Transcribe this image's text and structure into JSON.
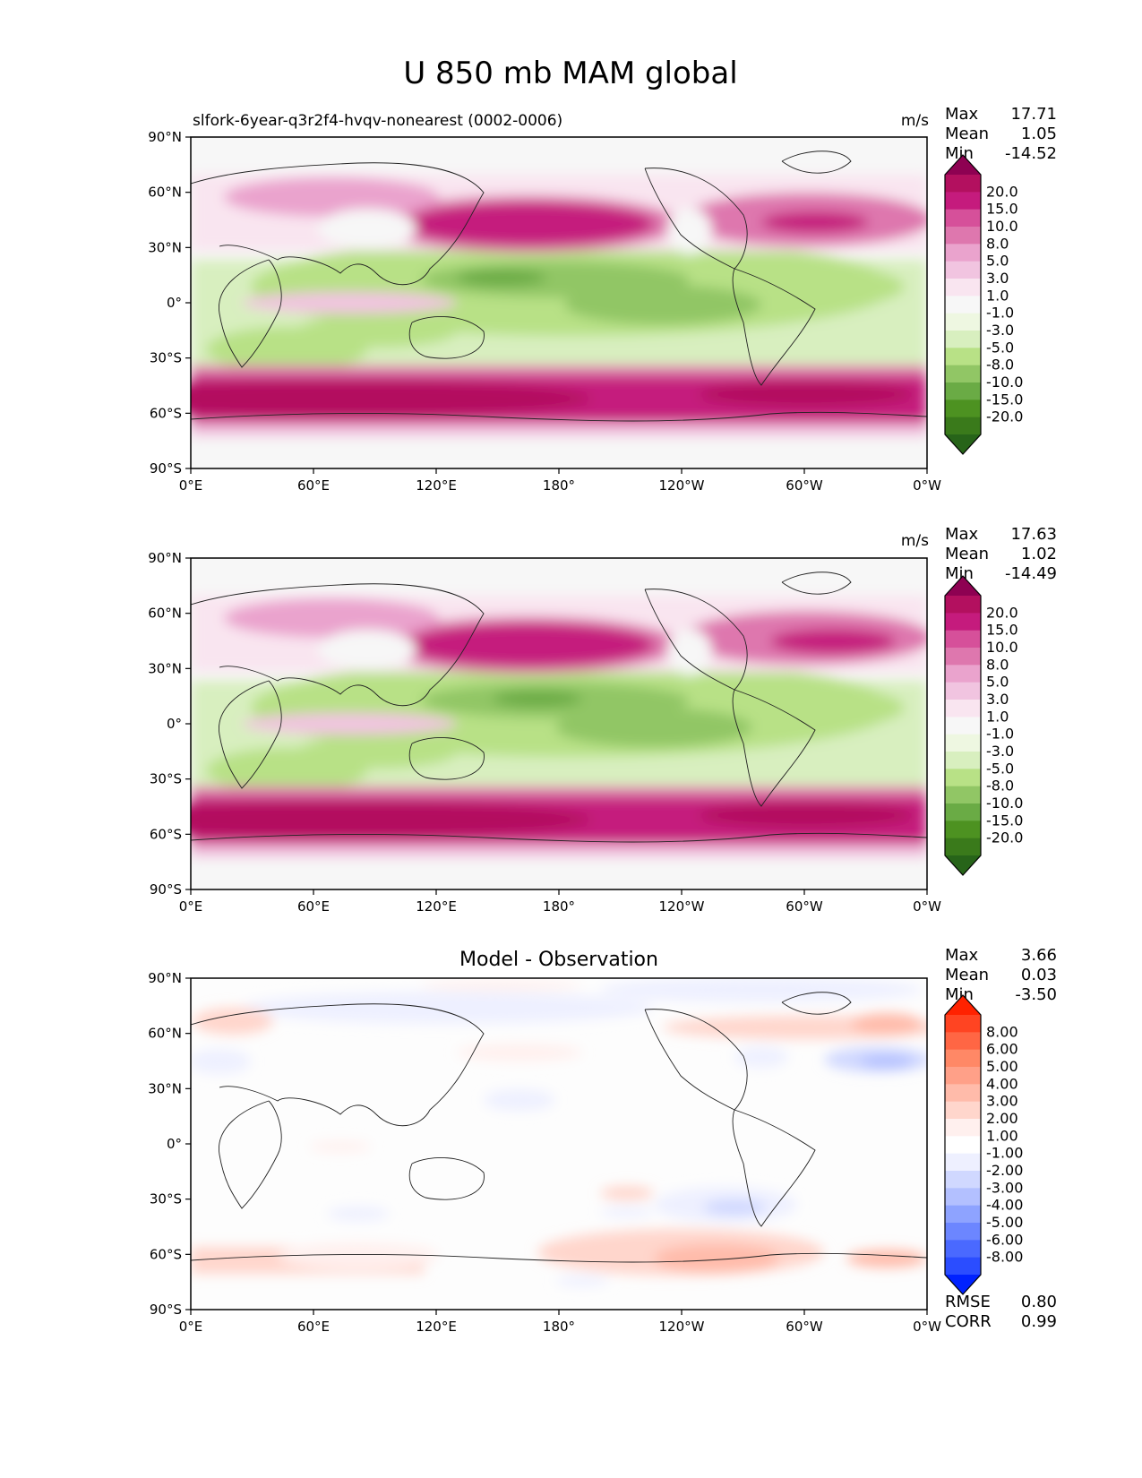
{
  "figure_title": "U 850 mb MAM global",
  "x_ticks": [
    "0°E",
    "60°E",
    "120°E",
    "180°",
    "120°W",
    "60°W",
    "0°W"
  ],
  "y_ticks": [
    "90°N",
    "60°N",
    "30°N",
    "0°",
    "30°S",
    "60°S",
    "90°S"
  ],
  "chart_data": [
    {
      "type": "heatmap",
      "title": "slfork-6year-q3r2f4-hvqv-nonearest (0002-0006)",
      "units": "m/s",
      "stats": [
        {
          "label": "Max",
          "value": "17.71"
        },
        {
          "label": "Mean",
          "value": "1.05"
        },
        {
          "label": "Min",
          "value": "-14.52"
        }
      ],
      "colorbar_labels": [
        "20.0",
        "15.0",
        "10.0",
        "8.0",
        "5.0",
        "3.0",
        "1.0",
        "-1.0",
        "-3.0",
        "-5.0",
        "-8.0",
        "-10.0",
        "-15.0",
        "-20.0"
      ],
      "colorbar_colors": [
        "#8e0152",
        "#b3105f",
        "#c51b7d",
        "#d6509a",
        "#de77ae",
        "#eaa3cd",
        "#f1c4e0",
        "#f9e5f0",
        "#f7f7f7",
        "#eef7e1",
        "#d8efbf",
        "#b8e186",
        "#91c665",
        "#6aab45",
        "#4d9221",
        "#3a7a1b",
        "#276419"
      ],
      "xlim": [
        0,
        360
      ],
      "ylim": [
        -90,
        90
      ]
    },
    {
      "type": "heatmap",
      "title": "",
      "units": "m/s",
      "stats": [
        {
          "label": "Max",
          "value": "17.63"
        },
        {
          "label": "Mean",
          "value": "1.02"
        },
        {
          "label": "Min",
          "value": "-14.49"
        }
      ],
      "colorbar_labels": [
        "20.0",
        "15.0",
        "10.0",
        "8.0",
        "5.0",
        "3.0",
        "1.0",
        "-1.0",
        "-3.0",
        "-5.0",
        "-8.0",
        "-10.0",
        "-15.0",
        "-20.0"
      ],
      "colorbar_colors": [
        "#8e0152",
        "#b3105f",
        "#c51b7d",
        "#d6509a",
        "#de77ae",
        "#eaa3cd",
        "#f1c4e0",
        "#f9e5f0",
        "#f7f7f7",
        "#eef7e1",
        "#d8efbf",
        "#b8e186",
        "#91c665",
        "#6aab45",
        "#4d9221",
        "#3a7a1b",
        "#276419"
      ],
      "xlim": [
        0,
        360
      ],
      "ylim": [
        -90,
        90
      ]
    },
    {
      "type": "heatmap",
      "title": "Model - Observation",
      "units": "",
      "stats": [
        {
          "label": "Max",
          "value": "3.66"
        },
        {
          "label": "Mean",
          "value": "0.03"
        },
        {
          "label": "Min",
          "value": "-3.50"
        }
      ],
      "colorbar_labels": [
        "8.00",
        "6.00",
        "5.00",
        "4.00",
        "3.00",
        "2.00",
        "1.00",
        "-1.00",
        "-2.00",
        "-3.00",
        "-4.00",
        "-5.00",
        "-6.00",
        "-8.00"
      ],
      "colorbar_colors": [
        "#ff2200",
        "#ff4422",
        "#ff6644",
        "#ff8866",
        "#ffa088",
        "#ffbbaa",
        "#ffd6cc",
        "#fff0ee",
        "#ffffff",
        "#eef0ff",
        "#d0d8ff",
        "#b3c0ff",
        "#8ea3ff",
        "#6c86ff",
        "#4a69ff",
        "#2b4dff",
        "#0022ff"
      ],
      "bottom_stats": [
        {
          "label": "RMSE",
          "value": "0.80"
        },
        {
          "label": "CORR",
          "value": "0.99"
        }
      ],
      "xlim": [
        0,
        360
      ],
      "ylim": [
        -90,
        90
      ]
    }
  ]
}
